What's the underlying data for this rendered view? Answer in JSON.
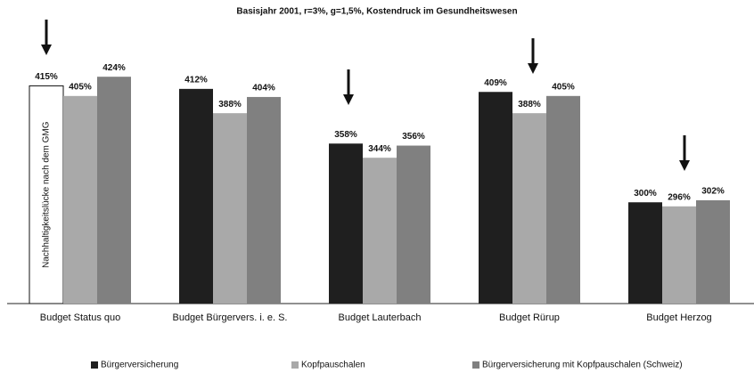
{
  "chart_data": {
    "type": "bar",
    "title": "Basisjahr 2001, r=3%, g=1,5%, Kostendruck im Gesundheitswesen",
    "categories": [
      "Budget Status quo",
      "Budget Bürgervers. i. e. S.",
      "Budget Lauterbach",
      "Budget Rürup",
      "Budget Herzog"
    ],
    "series": [
      {
        "name": "Bürgerversicherung",
        "color": "#1f1f1f",
        "colors": [
          "#ffffff",
          "#1f1f1f",
          "#1f1f1f",
          "#1f1f1f",
          "#1f1f1f"
        ],
        "values": [
          415,
          412,
          358,
          409,
          300
        ],
        "value_labels": [
          "415%",
          "412%",
          "358%",
          "409%",
          "300%"
        ]
      },
      {
        "name": "Kopfpauschalen",
        "color": "#a9a9a9",
        "values": [
          405,
          388,
          344,
          388,
          296
        ],
        "value_labels": [
          "405%",
          "388%",
          "344%",
          "388%",
          "296%"
        ]
      },
      {
        "name": "Bürgerversicherung mit Kopfpauschalen (Schweiz)",
        "color": "#808080",
        "values": [
          424,
          404,
          356,
          405,
          302
        ],
        "value_labels": [
          "424%",
          "404%",
          "356%",
          "405%",
          "302%"
        ]
      }
    ],
    "annotation": "Nachhaltigkeitslücke nach dem GMG",
    "ylim": [
      200,
      440
    ]
  }
}
